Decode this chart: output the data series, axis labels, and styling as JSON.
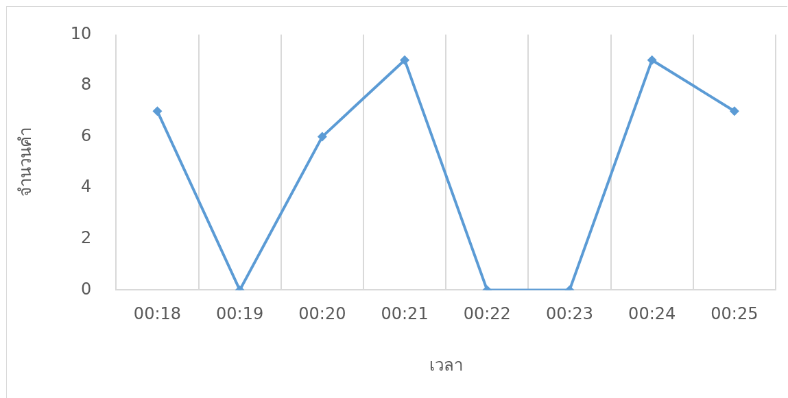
{
  "chart_data": {
    "type": "line",
    "xlabel": "เวลา",
    "ylabel": "จำนวนคำ",
    "categories": [
      "00:18",
      "00:19",
      "00:20",
      "00:21",
      "00:22",
      "00:23",
      "00:24",
      "00:25"
    ],
    "series": [
      {
        "color": "#5b9bd5",
        "values": [
          7,
          0,
          6,
          9,
          0,
          0,
          9,
          7
        ]
      }
    ],
    "ylim": [
      0,
      10
    ],
    "yticks": [
      0,
      2,
      4,
      6,
      8,
      10
    ],
    "grid": "x",
    "legend": false,
    "marker": "diamond",
    "line_style": "solid"
  }
}
